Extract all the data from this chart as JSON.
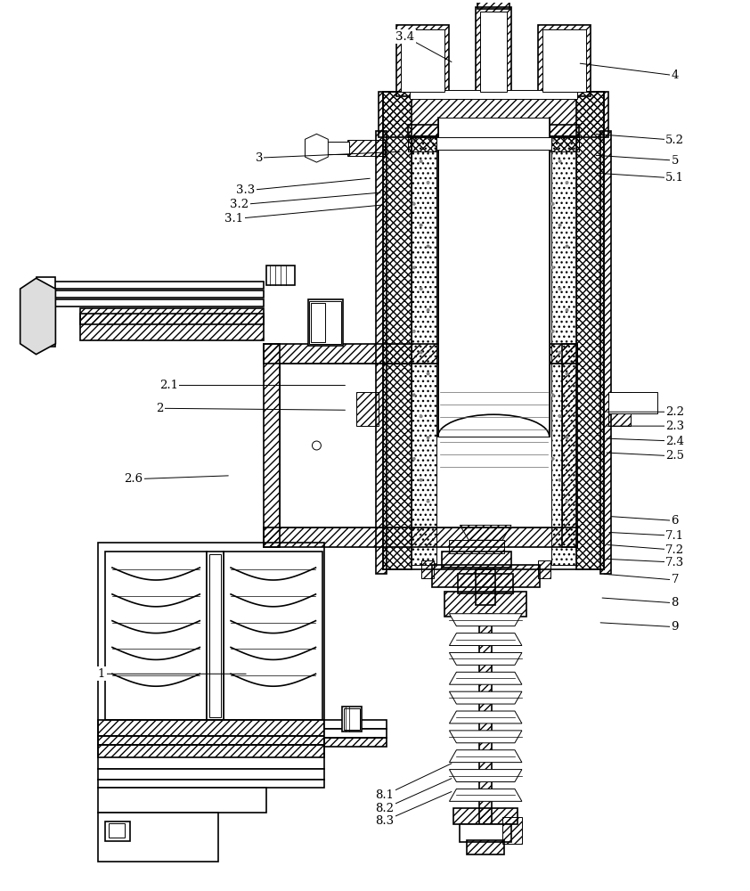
{
  "bg_color": "#ffffff",
  "figsize": [
    8.42,
    10.0
  ],
  "dpi": 100,
  "annotations": [
    [
      "3.4",
      455,
      38,
      510,
      68
    ],
    [
      "4",
      760,
      82,
      650,
      68
    ],
    [
      "3",
      290,
      175,
      452,
      168
    ],
    [
      "3.3",
      275,
      212,
      418,
      198
    ],
    [
      "3.2",
      268,
      228,
      430,
      214
    ],
    [
      "3.1",
      262,
      244,
      432,
      228
    ],
    [
      "5.2",
      760,
      155,
      668,
      148
    ],
    [
      "5",
      760,
      178,
      668,
      172
    ],
    [
      "5.1",
      760,
      198,
      668,
      192
    ],
    [
      "2.1",
      188,
      432,
      390,
      432
    ],
    [
      "2",
      178,
      458,
      390,
      460
    ],
    [
      "2.2",
      760,
      462,
      680,
      462
    ],
    [
      "2.3",
      760,
      478,
      680,
      478
    ],
    [
      "2.4",
      760,
      495,
      680,
      492
    ],
    [
      "2.5",
      760,
      512,
      680,
      508
    ],
    [
      "2.6",
      148,
      538,
      258,
      534
    ],
    [
      "6",
      760,
      585,
      685,
      580
    ],
    [
      "7.1",
      760,
      602,
      683,
      598
    ],
    [
      "7.2",
      760,
      618,
      681,
      612
    ],
    [
      "7.3",
      760,
      632,
      679,
      628
    ],
    [
      "7",
      760,
      652,
      677,
      645
    ],
    [
      "8",
      760,
      678,
      675,
      672
    ],
    [
      "9",
      760,
      705,
      673,
      700
    ],
    [
      "1",
      112,
      758,
      278,
      758
    ],
    [
      "8.1",
      432,
      895,
      510,
      858
    ],
    [
      "8.2",
      432,
      910,
      510,
      875
    ],
    [
      "8.3",
      432,
      924,
      510,
      890
    ]
  ]
}
